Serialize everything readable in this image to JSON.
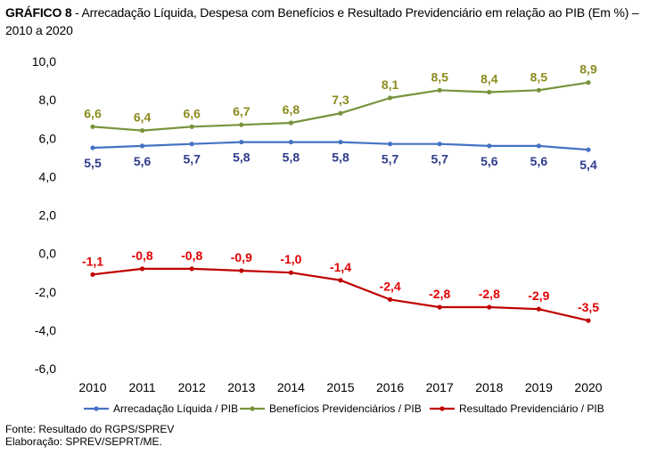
{
  "title": {
    "label": "GRÁFICO 8",
    "text": " - Arrecadação Líquida, Despesa com Benefícios e Resultado Previdenciário em relação ao PIB (Em %) – 2010 a 2020"
  },
  "chart_data": {
    "type": "line",
    "x": [
      "2010",
      "2011",
      "2012",
      "2013",
      "2014",
      "2015",
      "2016",
      "2017",
      "2018",
      "2019",
      "2020"
    ],
    "ylim": [
      -6,
      10
    ],
    "yticks": [
      "10,0",
      "8,0",
      "6,0",
      "4,0",
      "2,0",
      "0,0",
      "-2,0",
      "-4,0",
      "-6,0"
    ],
    "ytick_values": [
      10,
      8,
      6,
      4,
      2,
      0,
      -2,
      -4,
      -6
    ],
    "grid": false,
    "legend_position": "bottom",
    "series": [
      {
        "name": "Arrecadação Líquida / PIB",
        "color": "#4472C4",
        "label_color": "#2E3B8C",
        "values": [
          5.5,
          5.6,
          5.7,
          5.8,
          5.8,
          5.8,
          5.7,
          5.7,
          5.6,
          5.6,
          5.4
        ],
        "labels": [
          "5,5",
          "5,6",
          "5,7",
          "5,8",
          "5,8",
          "5,8",
          "5,7",
          "5,7",
          "5,6",
          "5,6",
          "5,4"
        ],
        "label_side": "below"
      },
      {
        "name": "Benefícios Previdenciários / PIB",
        "color": "#77933C",
        "label_color": "#8B8B1F",
        "values": [
          6.6,
          6.4,
          6.6,
          6.7,
          6.8,
          7.3,
          8.1,
          8.5,
          8.4,
          8.5,
          8.9
        ],
        "labels": [
          "6,6",
          "6,4",
          "6,6",
          "6,7",
          "6,8",
          "7,3",
          "8,1",
          "8,5",
          "8,4",
          "8,5",
          "8,9"
        ],
        "label_side": "above"
      },
      {
        "name": "Resultado Previdenciário / PIB",
        "color": "#C00000",
        "label_color": "#E00000",
        "values": [
          -1.1,
          -0.8,
          -0.8,
          -0.9,
          -1.0,
          -1.4,
          -2.4,
          -2.8,
          -2.8,
          -2.9,
          -3.5
        ],
        "labels": [
          "-1,1",
          "-0,8",
          "-0,8",
          "-0,9",
          "-1,0",
          "-1,4",
          "-2,4",
          "-2,8",
          "-2,8",
          "-2,9",
          "-3,5"
        ],
        "label_side": "above"
      }
    ]
  },
  "footer": {
    "source": "Fonte: Resultado do RGPS/SPREV",
    "elaboration": "Elaboração: SPREV/SEPRT/ME."
  }
}
